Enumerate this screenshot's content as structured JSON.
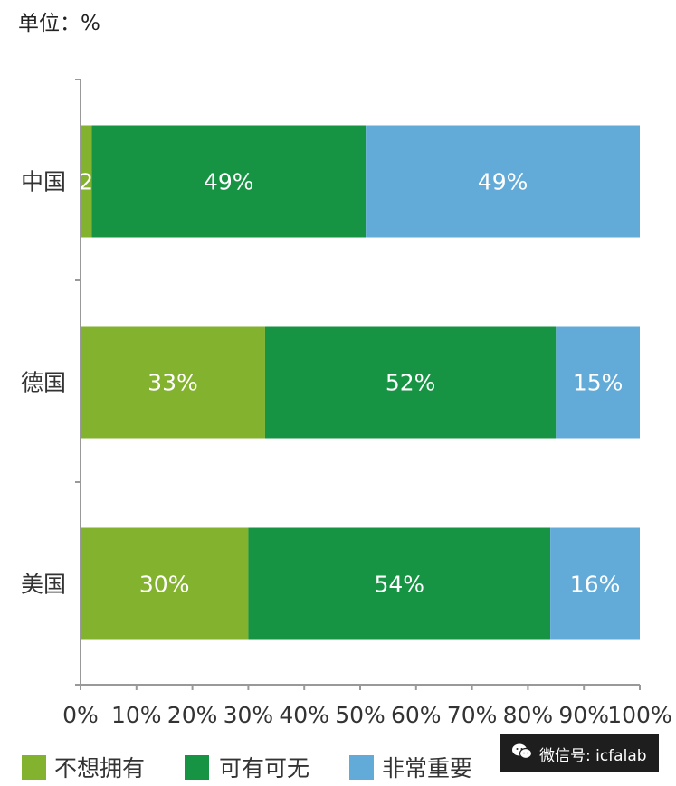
{
  "unit_label": "单位：%",
  "watermark": "微信号: icfalab",
  "chart_data": {
    "type": "bar",
    "orientation": "horizontal",
    "stacked": true,
    "categories": [
      "中国",
      "德国",
      "美国"
    ],
    "series": [
      {
        "name": "不想拥有",
        "values": [
          2,
          33,
          30
        ],
        "color": "#82b22e"
      },
      {
        "name": "可有可无",
        "values": [
          49,
          52,
          54
        ],
        "color": "#179443"
      },
      {
        "name": "非常重要",
        "values": [
          49,
          15,
          16
        ],
        "color": "#62abd8"
      }
    ],
    "xlim": [
      0,
      100
    ],
    "xticks": [
      "0%",
      "10%",
      "20%",
      "30%",
      "40%",
      "50%",
      "60%",
      "70%",
      "80%",
      "90%",
      "100%"
    ],
    "data_label_suffix": "%",
    "grid": false,
    "legend_position": "bottom"
  }
}
